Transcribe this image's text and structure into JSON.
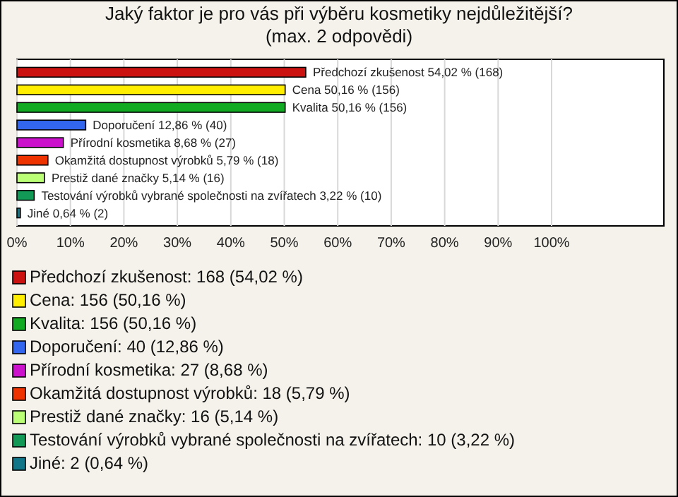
{
  "chart_data": {
    "type": "bar",
    "orientation": "horizontal",
    "title": "Jaký faktor je pro vás při výběru kosmetiky nejdůležitější? (max. 2 odpovědi)",
    "categories": [
      null,
      null,
      null,
      null,
      null,
      null,
      null,
      null,
      null
    ],
    "values": [
      54.02,
      50.16,
      50.16,
      12.86,
      8.68,
      5.79,
      5.14,
      3.22,
      0.64
    ],
    "colors": [
      "#cc1111",
      "#ffee00",
      "#11aa22",
      "#3366ee",
      "#cc11cc",
      "#ee3300",
      "#bbff77",
      "#119955",
      "#117788"
    ],
    "value_labels": [
      "Předchozí zkušenost 54,02 % (168)",
      "Cena 50,16 % (156)",
      "Kvalita 50,16 % (156)",
      "Doporučení 12,86 % (40)",
      "Přírodní kosmetika 8,68 % (27)",
      "Okamžitá dostupnost výrobků 5,79 % (18)",
      "Prestiž dané značky 5,14 % (16)",
      "Testování výrobků vybrané společnosti na zvířatech 3,22 % (10)",
      "Jiné 0,64 % (2)"
    ],
    "xlim": [
      0,
      121
    ],
    "xticks": [
      {
        "value": 0,
        "label": "0%"
      },
      {
        "value": 10,
        "label": "10%"
      },
      {
        "value": 20,
        "label": "20%"
      },
      {
        "value": 30,
        "label": "30%"
      },
      {
        "value": 40,
        "label": "40%"
      },
      {
        "value": 50,
        "label": "50%"
      },
      {
        "value": 60,
        "label": "60%"
      },
      {
        "value": 70,
        "label": "70%"
      },
      {
        "value": 80,
        "label": "80%"
      },
      {
        "value": 90,
        "label": "90%"
      },
      {
        "value": 100,
        "label": "100%"
      }
    ],
    "grid": "x",
    "annotations": [
      "Předchozí zkušenost: 168 (54,02 %)",
      "Cena: 156 (50,16 %)",
      "Kvalita: 156 (50,16 %)",
      "Doporučení: 40 (12,86 %)",
      "Přírodní kosmetika: 27 (8,68 %)",
      "Okamžitá dostupnost výrobků: 18 (5,79 %)",
      "Prestiž dané značky: 16 (5,14 %)",
      "Testování výrobků vybrané společnosti na zvířatech: 10 (3,22 %)",
      "Jiné: 2 (0,64 %)"
    ]
  }
}
